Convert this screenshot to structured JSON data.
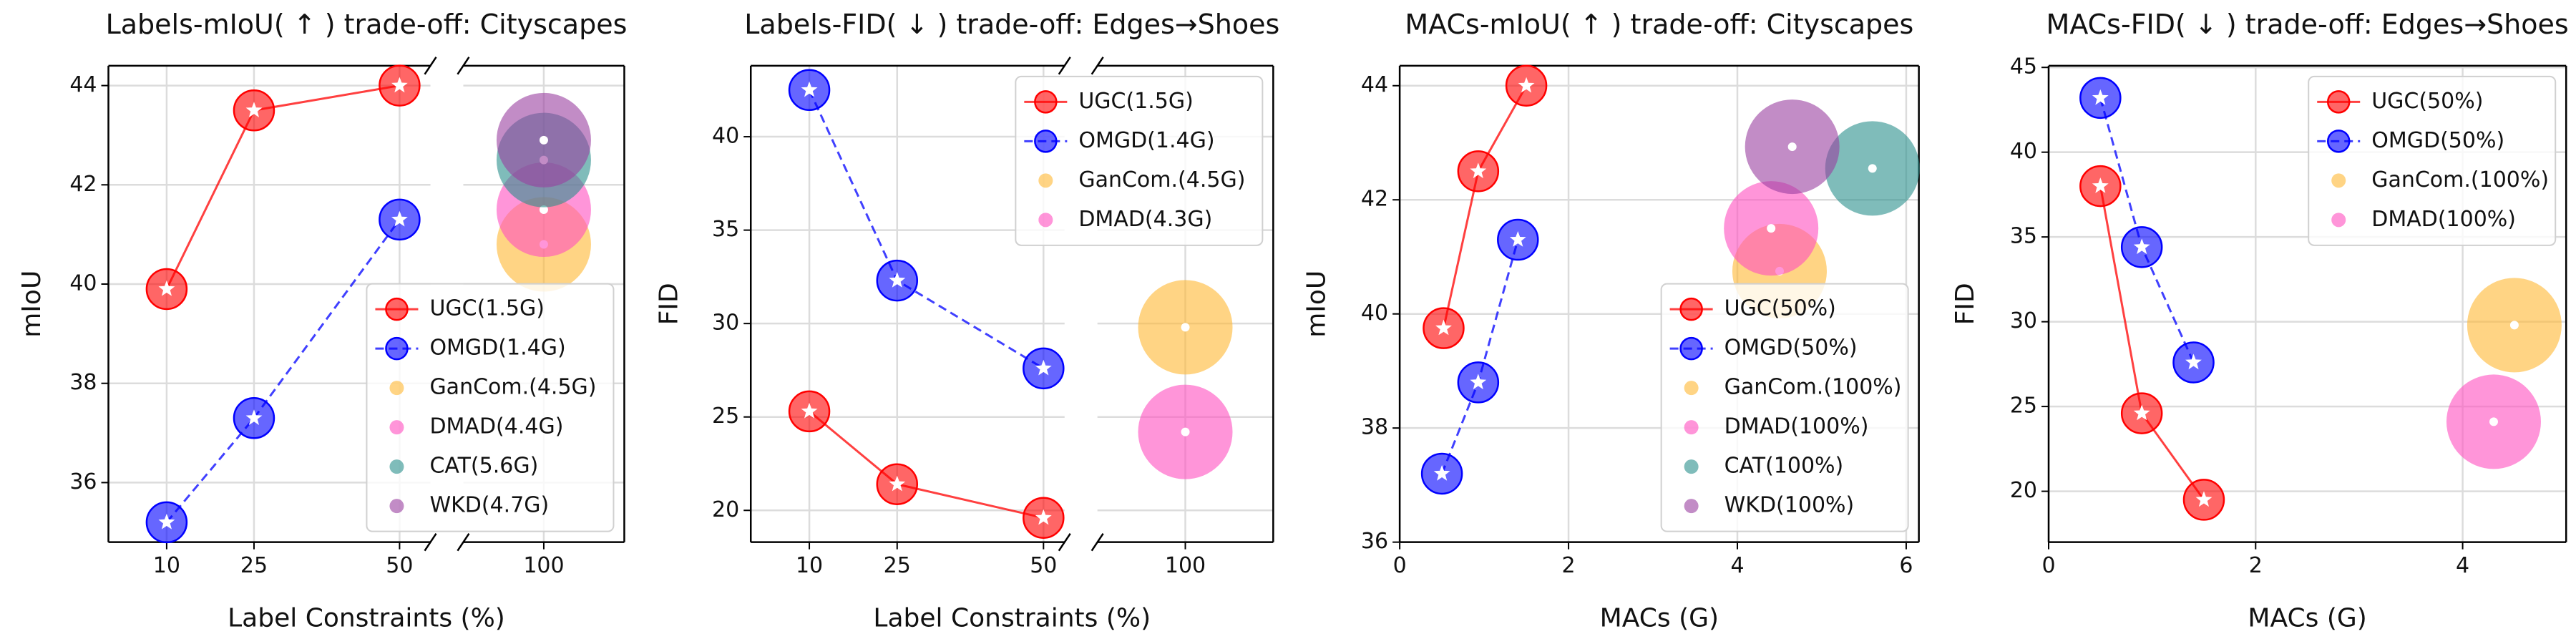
{
  "chart_data": [
    {
      "type": "scatter",
      "title": "Labels-mIoU( ↑ ) trade-off: Cityscapes",
      "xlabel": "Label Constraints (%)",
      "ylabel": "mIoU",
      "x_segments": [
        {
          "xlim": [
            0,
            55.3
          ],
          "xticks": [
            10,
            25,
            50
          ]
        },
        {
          "xlim": [
            90,
            110
          ],
          "xticks": [
            100
          ]
        }
      ],
      "ylim": [
        34.8,
        44.4
      ],
      "yticks": [
        36,
        38,
        40,
        42,
        44
      ],
      "grid": true,
      "legend": "lower right",
      "series": [
        {
          "name": "UGC(1.5G)",
          "color": "#ff0000",
          "line": "solid",
          "x": [
            10,
            25,
            50
          ],
          "values": [
            39.9,
            43.5,
            44.0
          ]
        },
        {
          "name": "OMGD(1.4G)",
          "color": "#0000ff",
          "line": "dashed",
          "x": [
            10,
            25,
            50
          ],
          "values": [
            35.2,
            37.3,
            41.3
          ]
        },
        {
          "name": "GanCom.(4.5G)",
          "color": "#ffb732",
          "x": [
            100
          ],
          "values": [
            40.8
          ]
        },
        {
          "name": "DMAD(4.4G)",
          "color": "#ff4fc0",
          "x": [
            100
          ],
          "values": [
            41.5
          ]
        },
        {
          "name": "CAT(5.6G)",
          "color": "#2a8f8c",
          "x": [
            100
          ],
          "values": [
            42.5
          ]
        },
        {
          "name": "WKD(4.7G)",
          "color": "#9a3fa0",
          "x": [
            100
          ],
          "values": [
            42.9
          ]
        }
      ]
    },
    {
      "type": "scatter",
      "title": "Labels-FID( ↓ ) trade-off: Edges→Shoes",
      "xlabel": "Label Constraints (%)",
      "ylabel": "FID",
      "x_segments": [
        {
          "xlim": [
            0,
            53.6
          ],
          "xticks": [
            10,
            25,
            50
          ]
        },
        {
          "xlim": [
            90,
            110
          ],
          "xticks": [
            100
          ]
        }
      ],
      "ylim": [
        18.3,
        43.8
      ],
      "yticks": [
        20,
        25,
        30,
        35,
        40
      ],
      "grid": true,
      "legend": "upper right",
      "series": [
        {
          "name": "UGC(1.5G)",
          "color": "#ff0000",
          "line": "solid",
          "x": [
            10,
            25,
            50
          ],
          "values": [
            25.3,
            21.4,
            19.6
          ]
        },
        {
          "name": "OMGD(1.4G)",
          "color": "#0000ff",
          "line": "dashed",
          "x": [
            10,
            25,
            50
          ],
          "values": [
            42.5,
            32.3,
            27.6
          ]
        },
        {
          "name": "GanCom.(4.5G)",
          "color": "#ffb732",
          "x": [
            100
          ],
          "values": [
            29.8
          ]
        },
        {
          "name": "DMAD(4.3G)",
          "color": "#ff4fc0",
          "x": [
            100
          ],
          "values": [
            24.2
          ]
        }
      ]
    },
    {
      "type": "scatter",
      "title": "MACs-mIoU( ↑ ) trade-off: Cityscapes",
      "xlabel": "MACs (G)",
      "ylabel": "mIoU",
      "xlim": [
        0,
        6.15
      ],
      "xticks": [
        0,
        2,
        4,
        6
      ],
      "ylim": [
        36,
        44.35
      ],
      "yticks": [
        36,
        38,
        40,
        42,
        44
      ],
      "grid": true,
      "legend": "lower right",
      "series": [
        {
          "name": "UGC(50%)",
          "color": "#ff0000",
          "line": "solid",
          "x": [
            0.52,
            0.93,
            1.5
          ],
          "values": [
            39.75,
            42.5,
            44.0
          ]
        },
        {
          "name": "OMGD(50%)",
          "color": "#0000ff",
          "line": "dashed",
          "x": [
            0.5,
            0.93,
            1.4
          ],
          "values": [
            37.2,
            38.8,
            41.3
          ]
        },
        {
          "name": "GanCom.(100%)",
          "color": "#ffb732",
          "x": [
            4.5
          ],
          "values": [
            40.75
          ]
        },
        {
          "name": "DMAD(100%)",
          "color": "#ff4fc0",
          "x": [
            4.4
          ],
          "values": [
            41.5
          ]
        },
        {
          "name": "CAT(100%)",
          "color": "#2a8f8c",
          "x": [
            5.6
          ],
          "values": [
            42.55
          ]
        },
        {
          "name": "WKD(100%)",
          "color": "#9a3fa0",
          "x": [
            4.65
          ],
          "values": [
            42.93
          ]
        }
      ]
    },
    {
      "type": "scatter",
      "title": "MACs-FID( ↓ ) trade-off: Edges→Shoes",
      "xlabel": "MACs (G)",
      "ylabel": "FID",
      "xlim": [
        0,
        5.0
      ],
      "xticks": [
        0,
        2,
        4
      ],
      "ylim": [
        17,
        45.1
      ],
      "yticks": [
        20,
        25,
        30,
        35,
        40,
        45
      ],
      "grid": true,
      "legend": "upper right",
      "series": [
        {
          "name": "UGC(50%)",
          "color": "#ff0000",
          "line": "solid",
          "x": [
            0.5,
            0.9,
            1.5
          ],
          "values": [
            38.0,
            24.6,
            19.5
          ]
        },
        {
          "name": "OMGD(50%)",
          "color": "#0000ff",
          "line": "dashed",
          "x": [
            0.5,
            0.9,
            1.4
          ],
          "values": [
            43.2,
            34.4,
            27.6
          ]
        },
        {
          "name": "GanCom.(100%)",
          "color": "#ffb732",
          "x": [
            4.5
          ],
          "values": [
            29.8
          ]
        },
        {
          "name": "DMAD(100%)",
          "color": "#ff4fc0",
          "x": [
            4.3
          ],
          "values": [
            24.1
          ]
        }
      ]
    }
  ]
}
